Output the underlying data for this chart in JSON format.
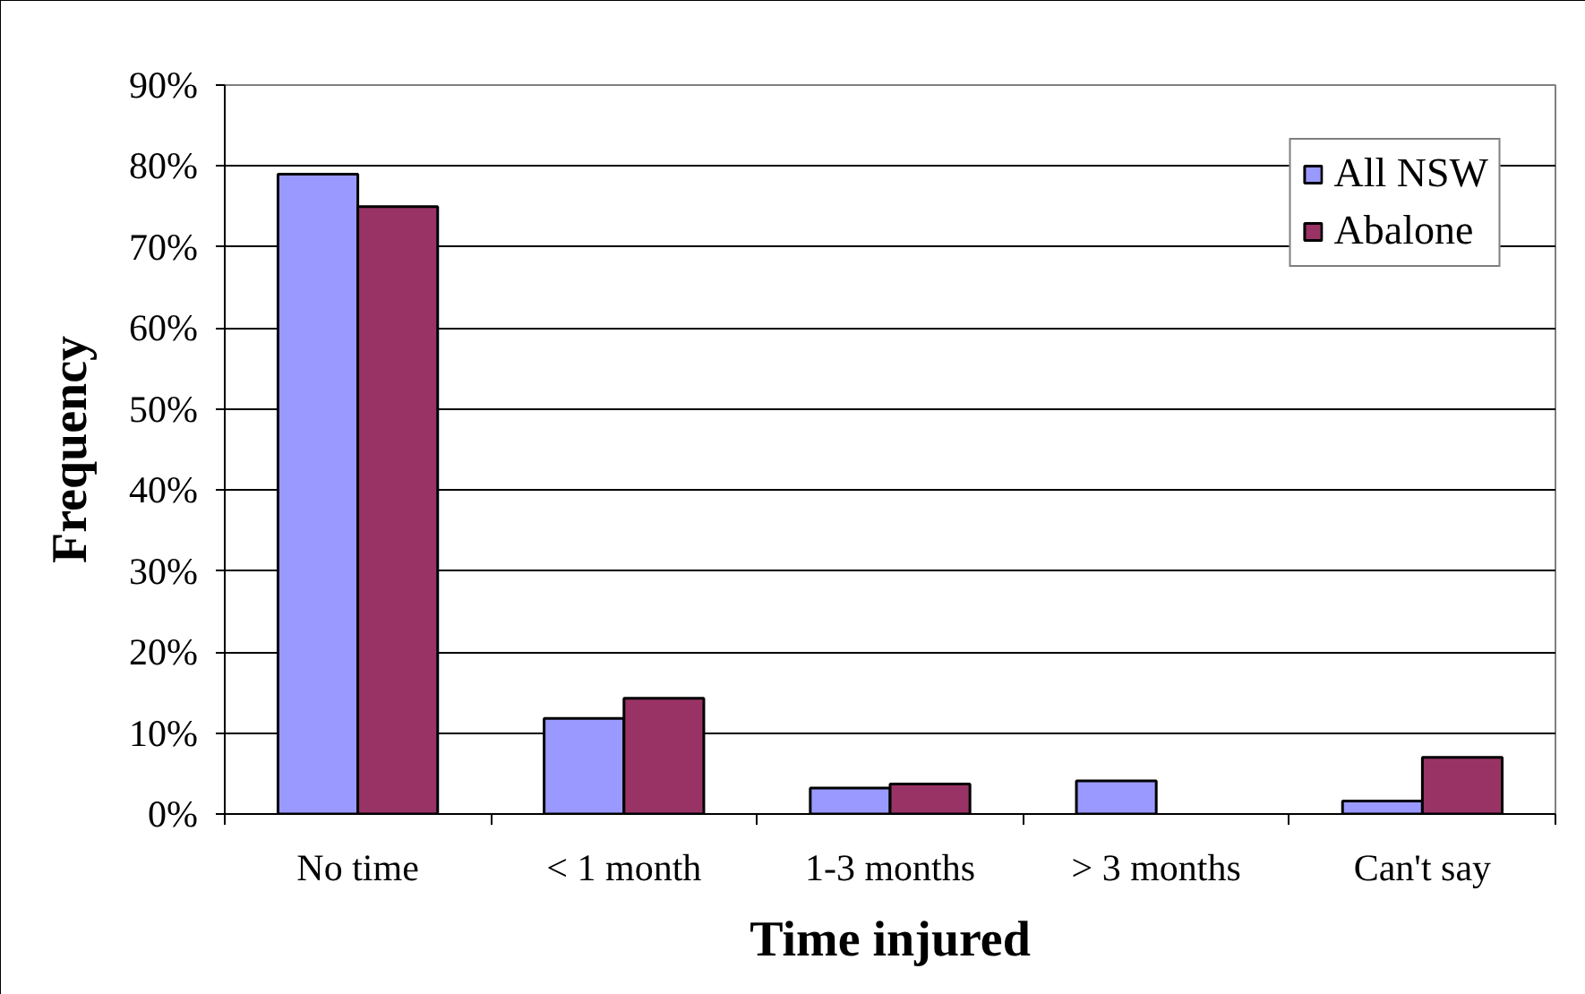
{
  "chart_data": {
    "type": "bar",
    "xlabel": "Time injured",
    "ylabel": "Frequency",
    "categories": [
      "No time",
      "< 1 month",
      "1-3 months",
      "> 3 months",
      "Can't say"
    ],
    "series": [
      {
        "name": "All NSW",
        "color": "#9999ff",
        "values": [
          79,
          11.8,
          3.2,
          4.1,
          1.6
        ]
      },
      {
        "name": "Abalone",
        "color": "#993366",
        "values": [
          75,
          14.3,
          3.7,
          null,
          7.0
        ]
      }
    ],
    "ylim": [
      0,
      90
    ],
    "yticks": [
      {
        "value": 0,
        "label": "0%"
      },
      {
        "value": 10,
        "label": "10%"
      },
      {
        "value": 20,
        "label": "20%"
      },
      {
        "value": 30,
        "label": "30%"
      },
      {
        "value": 40,
        "label": "40%"
      },
      {
        "value": 50,
        "label": "50%"
      },
      {
        "value": 60,
        "label": "60%"
      },
      {
        "value": 70,
        "label": "70%"
      },
      {
        "value": 80,
        "label": "80%"
      },
      {
        "value": 90,
        "label": "90%"
      }
    ],
    "grid": "y",
    "legend": "top right"
  }
}
